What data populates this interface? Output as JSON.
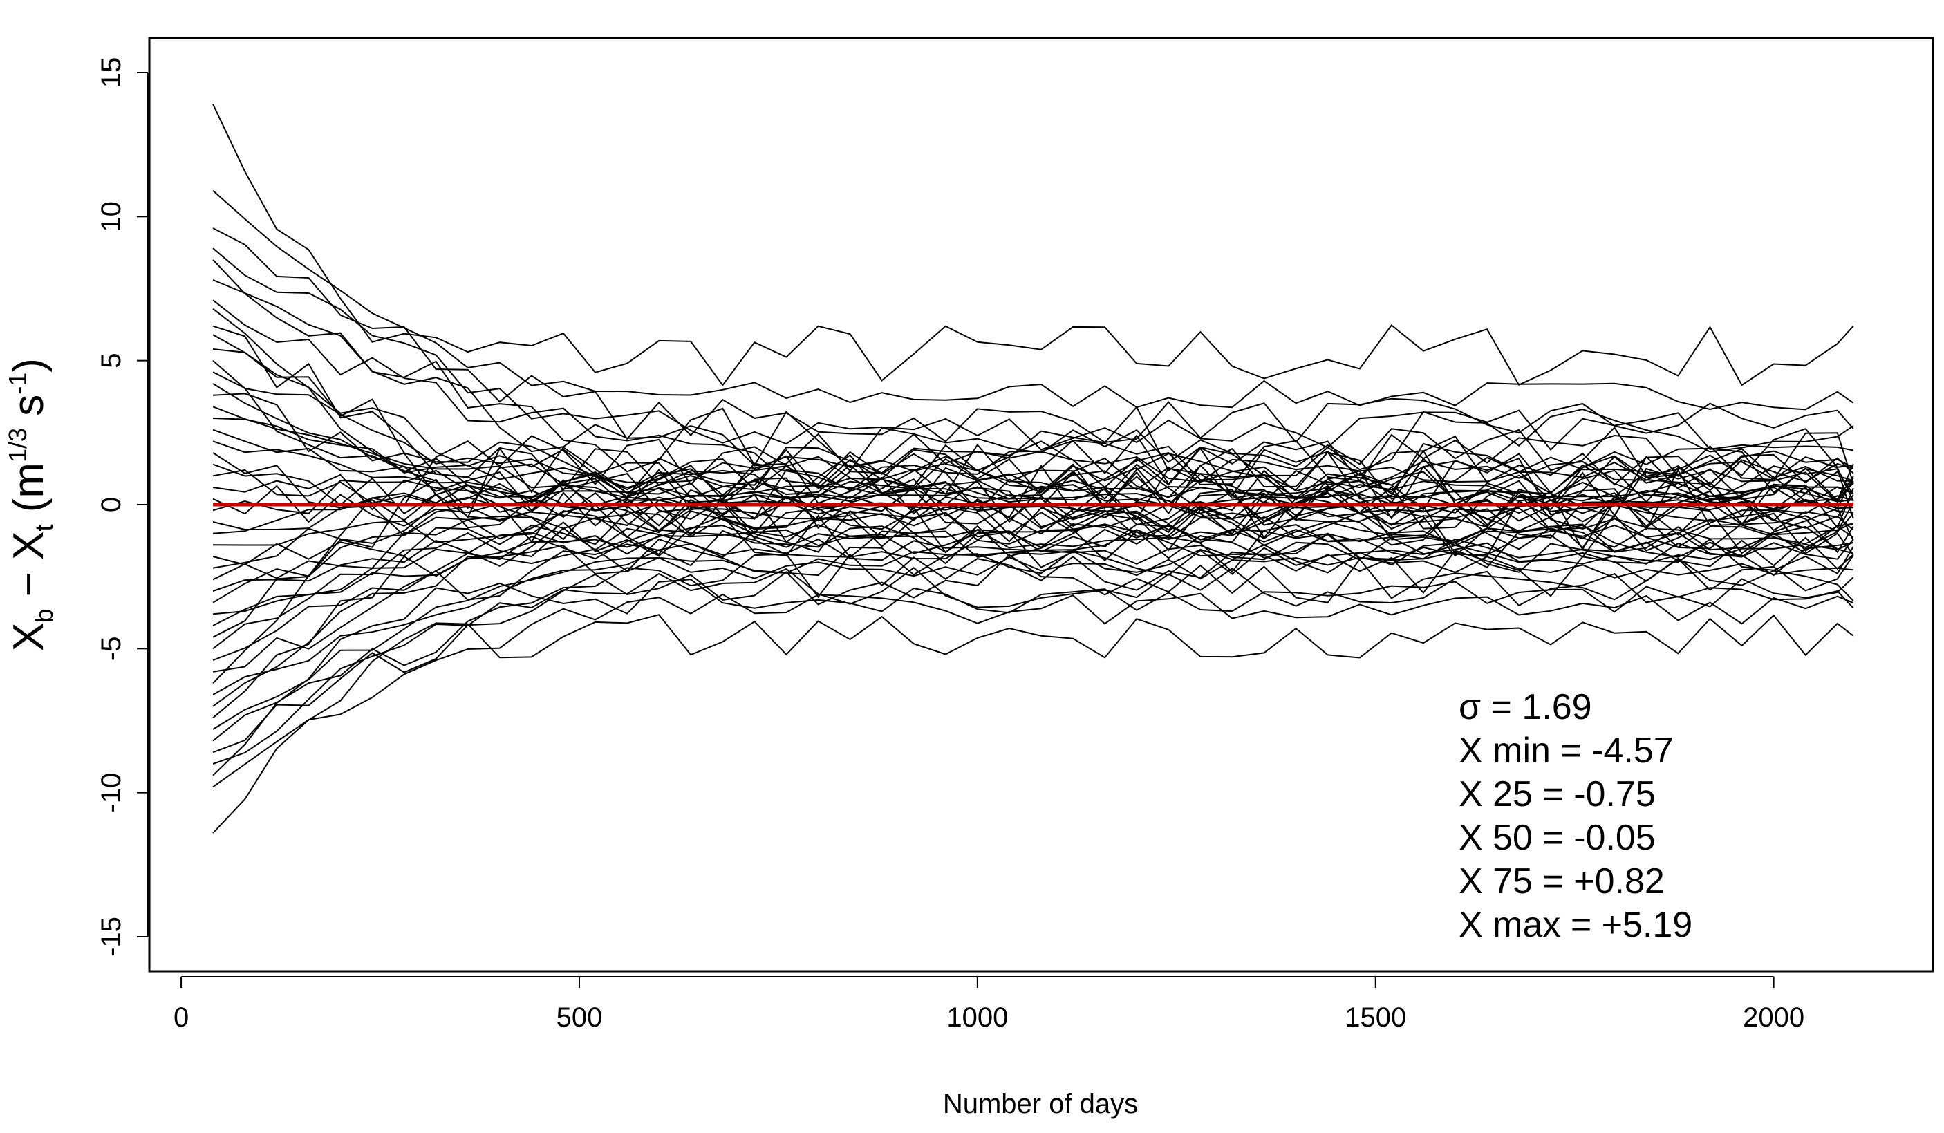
{
  "chart_data": {
    "type": "line",
    "title": "",
    "xlabel": "Number of days",
    "ylabel": {
      "base1": "X",
      "sub1": "b",
      "middle": " − X",
      "sub2": "t",
      "open": " (m",
      "sup1": "1/3",
      "mid2": " s",
      "sup2": "-1",
      "close": ")"
    },
    "xlim": [
      -40,
      2200
    ],
    "ylim": [
      -16.2,
      16.2
    ],
    "x_ticks": [
      0,
      500,
      1000,
      1500,
      2000
    ],
    "x_tick_labels": [
      "0",
      "500",
      "1000",
      "1500",
      "2000"
    ],
    "y_ticks": [
      -15,
      -10,
      -5,
      0,
      5,
      10,
      15
    ],
    "y_tick_labels": [
      "-15",
      "-10",
      "-5",
      "0",
      "5",
      "10",
      "15"
    ],
    "grid": false,
    "legend": "none",
    "x": [
      40,
      80,
      120,
      160,
      200,
      240,
      280,
      320,
      360,
      400,
      440,
      480,
      520,
      560,
      600,
      640,
      680,
      720,
      760,
      800,
      840,
      880,
      920,
      960,
      1000,
      1040,
      1080,
      1120,
      1160,
      1200,
      1240,
      1280,
      1320,
      1360,
      1400,
      1440,
      1480,
      1520,
      1560,
      1600,
      1640,
      1680,
      1720,
      1760,
      1800,
      1840,
      1880,
      1920,
      1960,
      2000,
      2040,
      2080,
      2100
    ],
    "series": [
      {
        "start": 13.9,
        "end": 5.2
      },
      {
        "start": 10.9,
        "end": 3.8
      },
      {
        "start": 9.6,
        "end": 2.9
      },
      {
        "start": 8.9,
        "end": 2.6
      },
      {
        "start": 8.5,
        "end": 2.2
      },
      {
        "start": 7.8,
        "end": 1.9
      },
      {
        "start": 7.1,
        "end": 1.6
      },
      {
        "start": 6.8,
        "end": 1.3
      },
      {
        "start": 6.2,
        "end": 1.1
      },
      {
        "start": 5.9,
        "end": 0.9
      },
      {
        "start": 5.4,
        "end": 0.8
      },
      {
        "start": 5.0,
        "end": 0.6
      },
      {
        "start": 4.6,
        "end": 0.5
      },
      {
        "start": 4.2,
        "end": 0.3
      },
      {
        "start": 3.8,
        "end": 0.2
      },
      {
        "start": 3.4,
        "end": 0.1
      },
      {
        "start": 3.0,
        "end": 0.0
      },
      {
        "start": 2.6,
        "end": -0.1
      },
      {
        "start": 2.2,
        "end": -0.2
      },
      {
        "start": 1.8,
        "end": -0.3
      },
      {
        "start": 1.4,
        "end": 0.4
      },
      {
        "start": 1.0,
        "end": -0.4
      },
      {
        "start": 0.6,
        "end": 0.2
      },
      {
        "start": 0.2,
        "end": -0.5
      },
      {
        "start": -0.2,
        "end": 0.7
      },
      {
        "start": -0.6,
        "end": -0.6
      },
      {
        "start": -1.0,
        "end": 0.5
      },
      {
        "start": -1.4,
        "end": -0.7
      },
      {
        "start": -1.8,
        "end": -0.8
      },
      {
        "start": -2.2,
        "end": 0.9
      },
      {
        "start": -2.6,
        "end": -0.9
      },
      {
        "start": -3.0,
        "end": -1.0
      },
      {
        "start": -3.4,
        "end": 1.0
      },
      {
        "start": -3.8,
        "end": -1.1
      },
      {
        "start": -4.2,
        "end": -1.2
      },
      {
        "start": -4.6,
        "end": 1.2
      },
      {
        "start": -5.0,
        "end": -1.3
      },
      {
        "start": -5.4,
        "end": -1.4
      },
      {
        "start": -5.8,
        "end": -1.5
      },
      {
        "start": -6.2,
        "end": 1.4
      },
      {
        "start": -6.6,
        "end": -1.6
      },
      {
        "start": -7.0,
        "end": -1.8
      },
      {
        "start": -7.4,
        "end": -2.0
      },
      {
        "start": -7.8,
        "end": -2.2
      },
      {
        "start": -8.2,
        "end": -2.4
      },
      {
        "start": -8.6,
        "end": -2.6
      },
      {
        "start": -9.0,
        "end": -2.9
      },
      {
        "start": -9.4,
        "end": -3.2
      },
      {
        "start": -9.8,
        "end": -3.6
      },
      {
        "start": -11.4,
        "end": -4.57
      }
    ],
    "reference_line": {
      "y": 0,
      "color": "#cc0000"
    },
    "line_color": "#000000",
    "annotations": [
      "σ = 1.69",
      "X min = -4.57",
      "X 25 = -0.75",
      "X 50 = -0.05",
      "X 75 = +0.82",
      "X max = +5.19"
    ]
  }
}
